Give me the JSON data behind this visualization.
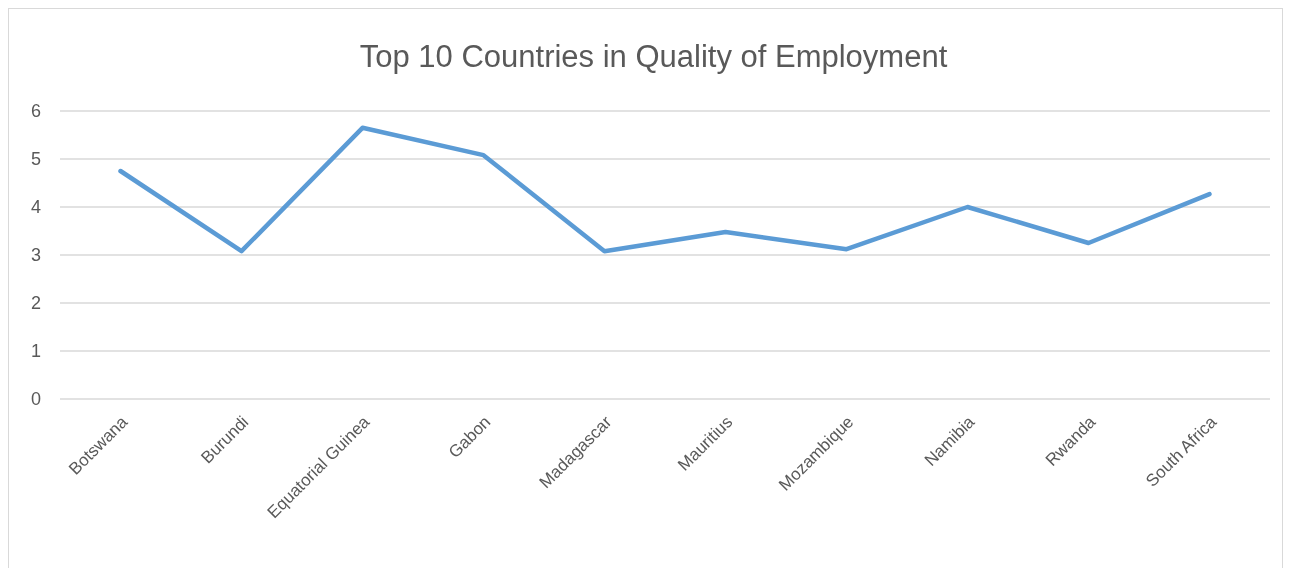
{
  "chart_data": {
    "type": "line",
    "title": "Top 10 Countries in Quality of Employment",
    "categories": [
      "Botswana",
      "Burundi",
      "Equatorial Guinea",
      "Gabon",
      "Madagascar",
      "Mauritius",
      "Mozambique",
      "Namibia",
      "Rwanda",
      "South Africa"
    ],
    "series": [
      {
        "color": "#5b9bd5",
        "values": [
          4.75,
          3.08,
          5.65,
          5.08,
          3.08,
          3.48,
          3.12,
          4.0,
          3.25,
          4.27
        ]
      }
    ],
    "ylim": [
      0,
      6
    ],
    "yticks": [
      0,
      1,
      2,
      3,
      4,
      5,
      6
    ],
    "grid": "y",
    "marker": "none",
    "line_style": "solid"
  }
}
